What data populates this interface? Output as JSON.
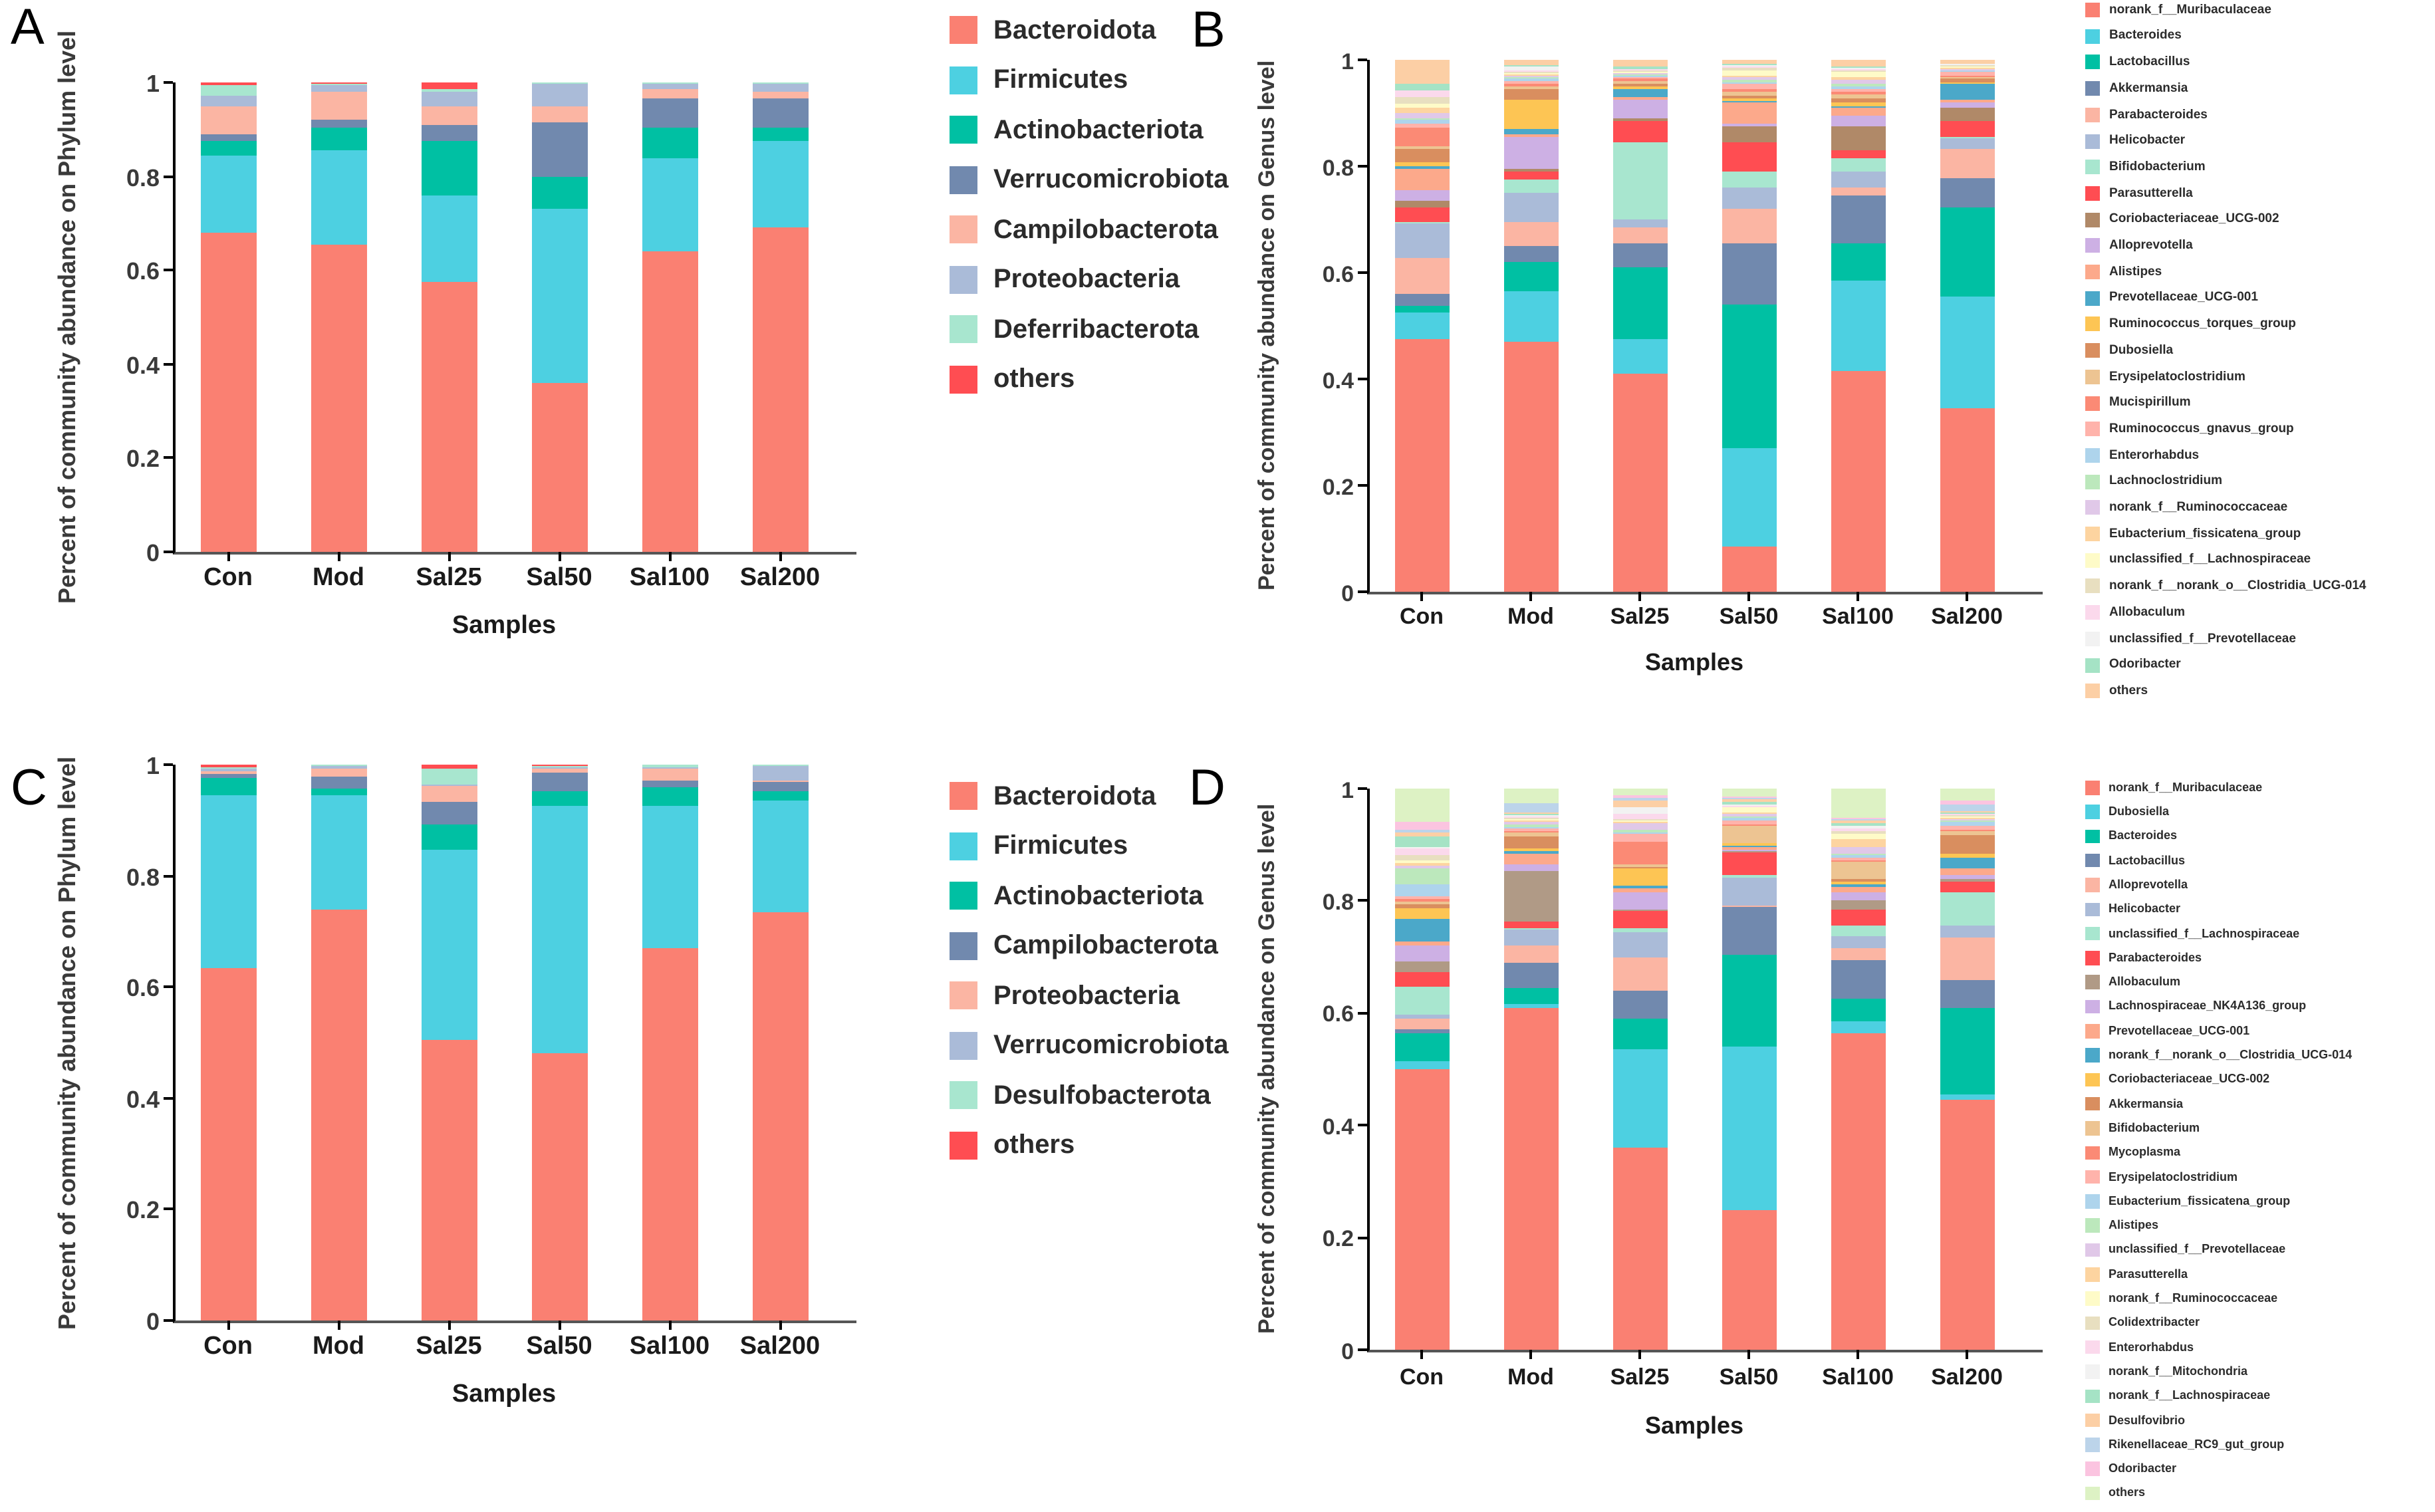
{
  "figure": {
    "samples": [
      "Con",
      "Mod",
      "Sal25",
      "Sal50",
      "Sal100",
      "Sal200"
    ],
    "x_axis_title": "Samples",
    "y_ticks": [
      0,
      0.2,
      0.4,
      0.6,
      0.8,
      1
    ]
  },
  "chart_data": [
    {
      "type": "bar",
      "stacked": true,
      "panel_label": "A",
      "title": "",
      "xlabel": "Samples",
      "ylabel": "Percent of community abundance on Phylum level",
      "categories": [
        "Con",
        "Mod",
        "Sal25",
        "Sal50",
        "Sal100",
        "Sal200"
      ],
      "ylim": [
        0,
        1
      ],
      "yticks": [
        0,
        0.2,
        0.4,
        0.6,
        0.8,
        1
      ],
      "grid": false,
      "legend_position": "right",
      "series": [
        {
          "name": "Bacteroidota",
          "color": "#FA8072",
          "values": [
            0.68,
            0.655,
            0.575,
            0.36,
            0.64,
            0.69
          ]
        },
        {
          "name": "Firmicutes",
          "color": "#4DD0E1",
          "values": [
            0.165,
            0.2,
            0.185,
            0.37,
            0.2,
            0.185
          ]
        },
        {
          "name": "Actinobacteriota",
          "color": "#00C0A3",
          "values": [
            0.03,
            0.05,
            0.115,
            0.07,
            0.065,
            0.03
          ]
        },
        {
          "name": "Verrucomicrobiota",
          "color": "#7189AE",
          "values": [
            0.015,
            0.015,
            0.035,
            0.115,
            0.06,
            0.06
          ]
        },
        {
          "name": "Campilobacterota",
          "color": "#FBB5A3",
          "values": [
            0.06,
            0.06,
            0.04,
            0.035,
            0.02,
            0.015
          ]
        },
        {
          "name": "Proteobacteria",
          "color": "#AABBD8",
          "values": [
            0.022,
            0.015,
            0.03,
            0.048,
            0.013,
            0.018
          ]
        },
        {
          "name": "Deferribacterota",
          "color": "#A8E6CF",
          "values": [
            0.022,
            0.003,
            0.007,
            0.001,
            0.001,
            0.001
          ]
        },
        {
          "name": "others",
          "color": "#FF4D52",
          "values": [
            0.006,
            0.002,
            0.013,
            0.001,
            0.001,
            0.001
          ]
        }
      ]
    },
    {
      "type": "bar",
      "stacked": true,
      "panel_label": "B",
      "title": "",
      "xlabel": "Samples",
      "ylabel": "Percent of community abundance on Genus level",
      "categories": [
        "Con",
        "Mod",
        "Sal25",
        "Sal50",
        "Sal100",
        "Sal200"
      ],
      "ylim": [
        0,
        1
      ],
      "yticks": [
        0,
        0.2,
        0.4,
        0.6,
        0.8,
        1
      ],
      "grid": false,
      "legend_position": "right",
      "series": [
        {
          "name": "norank_f__Muribaculaceae",
          "color": "#FA8072",
          "values": [
            0.475,
            0.47,
            0.41,
            0.085,
            0.415,
            0.345
          ]
        },
        {
          "name": "Bacteroides",
          "color": "#4DD0E1",
          "values": [
            0.05,
            0.095,
            0.065,
            0.185,
            0.17,
            0.21
          ]
        },
        {
          "name": "Lactobacillus",
          "color": "#00C0A3",
          "values": [
            0.012,
            0.055,
            0.135,
            0.27,
            0.07,
            0.167
          ]
        },
        {
          "name": "Akkermansia",
          "color": "#7189AE",
          "values": [
            0.022,
            0.03,
            0.045,
            0.115,
            0.09,
            0.055
          ]
        },
        {
          "name": "Parabacteroides",
          "color": "#FBB5A3",
          "values": [
            0.068,
            0.045,
            0.03,
            0.065,
            0.015,
            0.055
          ]
        },
        {
          "name": "Helicobacter",
          "color": "#AABBD8",
          "values": [
            0.065,
            0.055,
            0.015,
            0.04,
            0.03,
            0.02
          ]
        },
        {
          "name": "Bifidobacterium",
          "color": "#A8E6CF",
          "values": [
            0.004,
            0.025,
            0.145,
            0.03,
            0.025,
            0.003
          ]
        },
        {
          "name": "Parasutterella",
          "color": "#FF4D52",
          "values": [
            0.026,
            0.015,
            0.04,
            0.055,
            0.015,
            0.03
          ]
        },
        {
          "name": "Coriobacteriaceae_UCG-002",
          "color": "#B08968",
          "values": [
            0.012,
            0.005,
            0.005,
            0.03,
            0.045,
            0.025
          ]
        },
        {
          "name": "Alloprevotella",
          "color": "#CDB0E4",
          "values": [
            0.02,
            0.06,
            0.035,
            0.005,
            0.02,
            0.01
          ]
        },
        {
          "name": "Alistipes",
          "color": "#FCA98B",
          "values": [
            0.042,
            0.004,
            0.005,
            0.04,
            0.015,
            0.005
          ]
        },
        {
          "name": "Prevotellaceae_UCG-001",
          "color": "#4BA8C9",
          "values": [
            0.004,
            0.012,
            0.015,
            0.003,
            0.003,
            0.03
          ]
        },
        {
          "name": "Ruminococcus_torques_group",
          "color": "#FDC554",
          "values": [
            0.007,
            0.055,
            0.004,
            0.005,
            0.006,
            0.002
          ]
        },
        {
          "name": "Dubosiella",
          "color": "#D98E5F",
          "values": [
            0.026,
            0.02,
            0.006,
            0.004,
            0.008,
            0.008
          ]
        },
        {
          "name": "Erysipelatoclostridium",
          "color": "#EDC492",
          "values": [
            0.004,
            0.004,
            0.004,
            0.008,
            0.008,
            0.002
          ]
        },
        {
          "name": "Mucispirillum",
          "color": "#FB8A75",
          "values": [
            0.036,
            0.006,
            0.006,
            0.004,
            0.004,
            0.004
          ]
        },
        {
          "name": "Ruminococcus_gnavus_group",
          "color": "#FFB3AB",
          "values": [
            0.008,
            0.004,
            0.003,
            0.01,
            0.006,
            0.006
          ]
        },
        {
          "name": "Enterorhabdus",
          "color": "#AED4EC",
          "values": [
            0.006,
            0.006,
            0.002,
            0.004,
            0.004,
            0.002
          ]
        },
        {
          "name": "Lachnoclostridium",
          "color": "#BCE8BC",
          "values": [
            0.004,
            0.002,
            0.002,
            0.004,
            0.006,
            0.002
          ]
        },
        {
          "name": "norank_f__Ruminococcaceae",
          "color": "#E0C8E8",
          "values": [
            0.009,
            0.003,
            0.002,
            0.005,
            0.008,
            0.002
          ]
        },
        {
          "name": "Eubacterium_fissicatena_group",
          "color": "#FDD4A0",
          "values": [
            0.01,
            0.002,
            0.002,
            0.004,
            0.004,
            0.002
          ]
        },
        {
          "name": "unclassified_f__Lachnospiraceae",
          "color": "#FEFBC8",
          "values": [
            0.008,
            0.002,
            0.003,
            0.01,
            0.012,
            0.002
          ]
        },
        {
          "name": "norank_f__norank_o__Clostridia_UCG-014",
          "color": "#E8DFC0",
          "values": [
            0.012,
            0.002,
            0.002,
            0.004,
            0.002,
            0.002
          ]
        },
        {
          "name": "Allobaculum",
          "color": "#FBD9EC",
          "values": [
            0.012,
            0.004,
            0.002,
            0.004,
            0.002,
            0.002
          ]
        },
        {
          "name": "unclassified_f__Prevotellaceae",
          "color": "#F2F2F2",
          "values": [
            0.002,
            0.008,
            0.001,
            0.002,
            0.002,
            0.001
          ]
        },
        {
          "name": "Odoribacter",
          "color": "#A5E3C5",
          "values": [
            0.012,
            0.002,
            0.003,
            0.003,
            0.002,
            0.002
          ]
        },
        {
          "name": "others",
          "color": "#FCCFA5",
          "values": [
            0.044,
            0.009,
            0.013,
            0.006,
            0.013,
            0.006
          ]
        }
      ]
    },
    {
      "type": "bar",
      "stacked": true,
      "panel_label": "C",
      "title": "",
      "xlabel": "Samples",
      "ylabel": "Percent of community abundance on Phylum level",
      "categories": [
        "Con",
        "Mod",
        "Sal25",
        "Sal50",
        "Sal100",
        "Sal200"
      ],
      "ylim": [
        0,
        1
      ],
      "yticks": [
        0,
        0.2,
        0.4,
        0.6,
        0.8,
        1
      ],
      "grid": false,
      "legend_position": "right",
      "series": [
        {
          "name": "Bacteroidota",
          "color": "#FA8072",
          "values": [
            0.635,
            0.74,
            0.505,
            0.48,
            0.67,
            0.735
          ]
        },
        {
          "name": "Firmicutes",
          "color": "#4DD0E1",
          "values": [
            0.31,
            0.205,
            0.342,
            0.445,
            0.255,
            0.2
          ]
        },
        {
          "name": "Actinobacteriota",
          "color": "#00C0A3",
          "values": [
            0.03,
            0.012,
            0.045,
            0.028,
            0.035,
            0.018
          ]
        },
        {
          "name": "Campilobacterota",
          "color": "#7189AE",
          "values": [
            0.008,
            0.022,
            0.042,
            0.032,
            0.012,
            0.015
          ]
        },
        {
          "name": "Proteobacteria",
          "color": "#FBB5A3",
          "values": [
            0.006,
            0.014,
            0.028,
            0.008,
            0.022,
            0.004
          ]
        },
        {
          "name": "Verrucomicrobiota",
          "color": "#AABBD8",
          "values": [
            0.004,
            0.005,
            0.003,
            0.002,
            0.002,
            0.026
          ]
        },
        {
          "name": "Desulfobacterota",
          "color": "#A8E6CF",
          "values": [
            0.002,
            0.001,
            0.028,
            0.003,
            0.003,
            0.001
          ]
        },
        {
          "name": "others",
          "color": "#FF4D52",
          "values": [
            0.005,
            0.001,
            0.007,
            0.002,
            0.001,
            0.001
          ]
        }
      ]
    },
    {
      "type": "bar",
      "stacked": true,
      "panel_label": "D",
      "title": "",
      "xlabel": "Samples",
      "ylabel": "Percent of community abundance on Genus level",
      "categories": [
        "Con",
        "Mod",
        "Sal25",
        "Sal50",
        "Sal100",
        "Sal200"
      ],
      "ylim": [
        0,
        1
      ],
      "yticks": [
        0,
        0.2,
        0.4,
        0.6,
        0.8,
        1
      ],
      "grid": false,
      "legend_position": "right",
      "series": [
        {
          "name": "norank_f__Muribaculaceae",
          "color": "#FA8072",
          "values": [
            0.5,
            0.61,
            0.36,
            0.25,
            0.565,
            0.445
          ]
        },
        {
          "name": "Dubosiella",
          "color": "#4DD0E1",
          "values": [
            0.015,
            0.005,
            0.175,
            0.29,
            0.02,
            0.01
          ]
        },
        {
          "name": "Bacteroides",
          "color": "#00C0A3",
          "values": [
            0.05,
            0.03,
            0.055,
            0.165,
            0.04,
            0.155
          ]
        },
        {
          "name": "Lactobacillus",
          "color": "#7189AE",
          "values": [
            0.005,
            0.045,
            0.05,
            0.085,
            0.07,
            0.05
          ]
        },
        {
          "name": "Alloprevotella",
          "color": "#FBB5A3",
          "values": [
            0.02,
            0.03,
            0.06,
            0.002,
            0.02,
            0.075
          ]
        },
        {
          "name": "Helicobacter",
          "color": "#AABBD8",
          "values": [
            0.008,
            0.028,
            0.045,
            0.05,
            0.022,
            0.02
          ]
        },
        {
          "name": "unclassified_f__Lachnospiraceae",
          "color": "#A8E6CF",
          "values": [
            0.05,
            0.004,
            0.006,
            0.004,
            0.018,
            0.06
          ]
        },
        {
          "name": "Parabacteroides",
          "color": "#FF4D52",
          "values": [
            0.025,
            0.012,
            0.03,
            0.04,
            0.03,
            0.02
          ]
        },
        {
          "name": "Allobaculum",
          "color": "#B09A86",
          "values": [
            0.018,
            0.09,
            0.004,
            0.002,
            0.015,
            0.004
          ]
        },
        {
          "name": "Lachnospiraceae_NK4A136_group",
          "color": "#CDB0E4",
          "values": [
            0.03,
            0.01,
            0.03,
            0.004,
            0.015,
            0.008
          ]
        },
        {
          "name": "Prevotellaceae_UCG-001",
          "color": "#FCA98B",
          "values": [
            0.006,
            0.02,
            0.008,
            0.004,
            0.01,
            0.01
          ]
        },
        {
          "name": "norank_f__norank_o__Clostridia_UCG-014",
          "color": "#4BA8C9",
          "values": [
            0.04,
            0.004,
            0.004,
            0.002,
            0.004,
            0.02
          ]
        },
        {
          "name": "Coriobacteriaceae_UCG-002",
          "color": "#FDC554",
          "values": [
            0.02,
            0.006,
            0.03,
            0.004,
            0.006,
            0.006
          ]
        },
        {
          "name": "Akkermansia",
          "color": "#D98E5F",
          "values": [
            0.008,
            0.02,
            0.004,
            0.002,
            0.004,
            0.035
          ]
        },
        {
          "name": "Bifidobacterium",
          "color": "#EDC492",
          "values": [
            0.004,
            0.008,
            0.004,
            0.03,
            0.03,
            0.006
          ]
        },
        {
          "name": "Mycoplasma",
          "color": "#FB8A75",
          "values": [
            0.004,
            0.002,
            0.04,
            0.002,
            0.002,
            0.002
          ]
        },
        {
          "name": "Erysipelatoclostridium",
          "color": "#FFB3AB",
          "values": [
            0.006,
            0.004,
            0.015,
            0.008,
            0.006,
            0.008
          ]
        },
        {
          "name": "Eubacterium_fissicatena_group",
          "color": "#AED4EC",
          "values": [
            0.02,
            0.004,
            0.002,
            0.004,
            0.004,
            0.008
          ]
        },
        {
          "name": "Alistipes",
          "color": "#BCE8BC",
          "values": [
            0.03,
            0.004,
            0.004,
            0.002,
            0.004,
            0.002
          ]
        },
        {
          "name": "unclassified_f__Prevotellaceae",
          "color": "#E0C8E8",
          "values": [
            0.004,
            0.004,
            0.012,
            0.004,
            0.01,
            0.002
          ]
        },
        {
          "name": "Parasutterella",
          "color": "#FDD4A0",
          "values": [
            0.004,
            0.004,
            0.002,
            0.004,
            0.015,
            0.002
          ]
        },
        {
          "name": "norank_f__Ruminococcaceae",
          "color": "#FEFBC8",
          "values": [
            0.006,
            0.002,
            0.004,
            0.008,
            0.01,
            0.002
          ]
        },
        {
          "name": "Colidextribacter",
          "color": "#E8DFC0",
          "values": [
            0.008,
            0.002,
            0.002,
            0.002,
            0.004,
            0.002
          ]
        },
        {
          "name": "Enterorhabdus",
          "color": "#FBD9EC",
          "values": [
            0.012,
            0.002,
            0.008,
            0.002,
            0.004,
            0.002
          ]
        },
        {
          "name": "norank_f__Mitochondria",
          "color": "#F2F2F2",
          "values": [
            0.002,
            0.002,
            0.012,
            0.002,
            0.006,
            0.002
          ]
        },
        {
          "name": "norank_f__Lachnospiraceae",
          "color": "#A5E3C5",
          "values": [
            0.02,
            0.002,
            0.002,
            0.004,
            0.004,
            0.002
          ]
        },
        {
          "name": "Desulfovibrio",
          "color": "#FCCFA5",
          "values": [
            0.008,
            0.004,
            0.012,
            0.006,
            0.006,
            0.002
          ]
        },
        {
          "name": "Rikenellaceae_RC9_gut_group",
          "color": "#BCD4EA",
          "values": [
            0.004,
            0.015,
            0.003,
            0.002,
            0.002,
            0.012
          ]
        },
        {
          "name": "Odoribacter",
          "color": "#FBC4E0",
          "values": [
            0.015,
            0.002,
            0.005,
            0.002,
            0.002,
            0.006
          ]
        },
        {
          "name": "others",
          "color": "#DDF2C4",
          "values": [
            0.058,
            0.025,
            0.012,
            0.014,
            0.052,
            0.022
          ]
        }
      ]
    }
  ]
}
